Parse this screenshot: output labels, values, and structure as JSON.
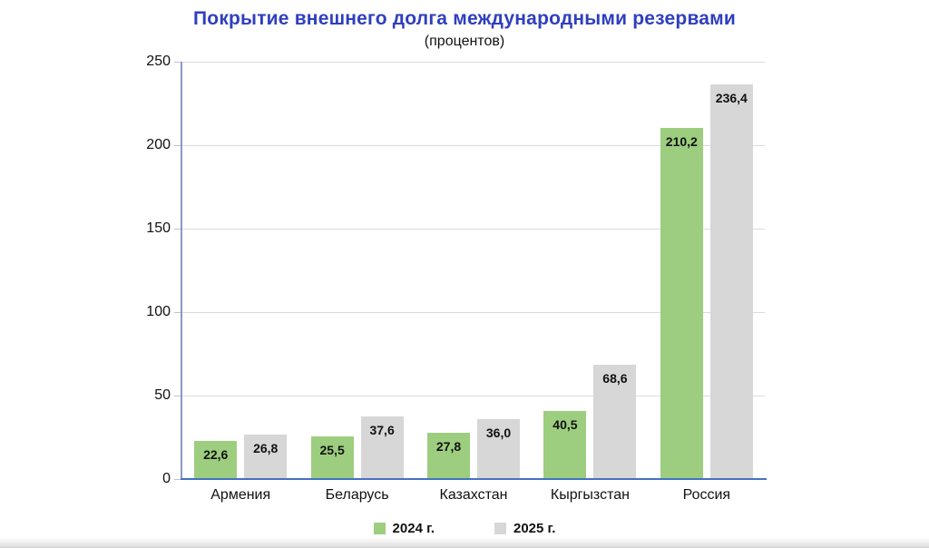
{
  "chart_data": {
    "type": "bar",
    "title": "Покрытие внешнего долга международными резервами",
    "subtitle": "(процентов)",
    "categories": [
      "Армения",
      "Беларусь",
      "Казахстан",
      "Кыргызстан",
      "Россия"
    ],
    "series": [
      {
        "name": "2024 г.",
        "color": "#9DCE7F",
        "values": [
          22.6,
          25.5,
          27.8,
          40.5,
          210.2
        ],
        "labels": [
          "22,6",
          "25,5",
          "27,8",
          "40,5",
          "210,2"
        ]
      },
      {
        "name": "2025 г.",
        "color": "#D7D7D7",
        "values": [
          26.8,
          37.6,
          36.0,
          68.6,
          236.4
        ],
        "labels": [
          "26,8",
          "37,6",
          "36,0",
          "68,6",
          "236,4"
        ]
      }
    ],
    "ylim": [
      0,
      250
    ],
    "yticks": [
      0,
      50,
      100,
      150,
      200,
      250
    ],
    "grid": "horizontal",
    "legend_position": "bottom",
    "colors": {
      "title": "#2F3FBE",
      "axis_line": "#8E98C8",
      "baseline": "#4472C4",
      "gridline": "#DBDBDB",
      "text": "#111111"
    }
  }
}
